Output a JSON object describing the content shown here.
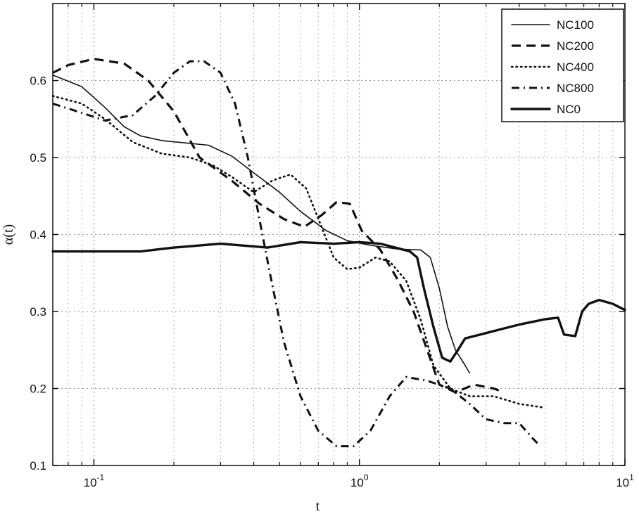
{
  "chart_data": {
    "type": "line",
    "xlabel": "t",
    "ylabel": "α(t)",
    "xscale": "log",
    "xlim": [
      0.07,
      10
    ],
    "ylim": [
      0.1,
      0.7
    ],
    "xticks": [
      {
        "value": 0.1,
        "base": "10",
        "exp": "-1"
      },
      {
        "value": 1,
        "base": "10",
        "exp": "0"
      },
      {
        "value": 10,
        "base": "10",
        "exp": "1"
      }
    ],
    "yticks": [
      0.1,
      0.2,
      0.3,
      0.4,
      0.5,
      0.6
    ],
    "ytick_labels": [
      "0.1",
      "0.2",
      "0.3",
      "0.4",
      "0.5",
      "0.6"
    ],
    "grid": true,
    "legend_position": "top-right",
    "series": [
      {
        "name": "NC100",
        "style": "thin-solid",
        "points": [
          [
            0.07,
            0.607
          ],
          [
            0.09,
            0.592
          ],
          [
            0.11,
            0.565
          ],
          [
            0.13,
            0.54
          ],
          [
            0.15,
            0.528
          ],
          [
            0.18,
            0.522
          ],
          [
            0.22,
            0.519
          ],
          [
            0.27,
            0.516
          ],
          [
            0.33,
            0.502
          ],
          [
            0.4,
            0.48
          ],
          [
            0.5,
            0.455
          ],
          [
            0.6,
            0.43
          ],
          [
            0.75,
            0.405
          ],
          [
            0.9,
            0.392
          ],
          [
            1.1,
            0.386
          ],
          [
            1.4,
            0.381
          ],
          [
            1.7,
            0.38
          ],
          [
            1.85,
            0.37
          ],
          [
            2.0,
            0.33
          ],
          [
            2.15,
            0.28
          ],
          [
            2.3,
            0.25
          ],
          [
            2.5,
            0.23
          ],
          [
            2.6,
            0.22
          ]
        ]
      },
      {
        "name": "NC200",
        "style": "dashed",
        "points": [
          [
            0.07,
            0.61
          ],
          [
            0.08,
            0.62
          ],
          [
            0.1,
            0.628
          ],
          [
            0.13,
            0.622
          ],
          [
            0.16,
            0.6
          ],
          [
            0.2,
            0.56
          ],
          [
            0.25,
            0.5
          ],
          [
            0.33,
            0.47
          ],
          [
            0.42,
            0.44
          ],
          [
            0.52,
            0.42
          ],
          [
            0.62,
            0.41
          ],
          [
            0.72,
            0.425
          ],
          [
            0.82,
            0.442
          ],
          [
            0.92,
            0.44
          ],
          [
            1.02,
            0.405
          ],
          [
            1.2,
            0.38
          ],
          [
            1.4,
            0.34
          ],
          [
            1.6,
            0.3
          ],
          [
            1.8,
            0.25
          ],
          [
            2.0,
            0.205
          ],
          [
            2.3,
            0.195
          ],
          [
            2.7,
            0.205
          ],
          [
            3.2,
            0.2
          ],
          [
            3.5,
            0.195
          ]
        ]
      },
      {
        "name": "NC400",
        "style": "dotted",
        "points": [
          [
            0.07,
            0.58
          ],
          [
            0.09,
            0.57
          ],
          [
            0.11,
            0.55
          ],
          [
            0.14,
            0.52
          ],
          [
            0.18,
            0.505
          ],
          [
            0.23,
            0.5
          ],
          [
            0.28,
            0.49
          ],
          [
            0.33,
            0.475
          ],
          [
            0.4,
            0.455
          ],
          [
            0.47,
            0.47
          ],
          [
            0.55,
            0.478
          ],
          [
            0.63,
            0.46
          ],
          [
            0.72,
            0.41
          ],
          [
            0.8,
            0.37
          ],
          [
            0.9,
            0.355
          ],
          [
            1.0,
            0.357
          ],
          [
            1.15,
            0.37
          ],
          [
            1.3,
            0.365
          ],
          [
            1.5,
            0.34
          ],
          [
            1.7,
            0.29
          ],
          [
            1.9,
            0.23
          ],
          [
            2.2,
            0.2
          ],
          [
            2.6,
            0.19
          ],
          [
            3.2,
            0.19
          ],
          [
            4.0,
            0.18
          ],
          [
            5.0,
            0.175
          ]
        ]
      },
      {
        "name": "NC800",
        "style": "dash-dot",
        "points": [
          [
            0.07,
            0.57
          ],
          [
            0.09,
            0.558
          ],
          [
            0.11,
            0.548
          ],
          [
            0.14,
            0.555
          ],
          [
            0.17,
            0.58
          ],
          [
            0.2,
            0.61
          ],
          [
            0.23,
            0.625
          ],
          [
            0.26,
            0.625
          ],
          [
            0.3,
            0.61
          ],
          [
            0.34,
            0.57
          ],
          [
            0.38,
            0.5
          ],
          [
            0.42,
            0.42
          ],
          [
            0.46,
            0.35
          ],
          [
            0.52,
            0.26
          ],
          [
            0.6,
            0.19
          ],
          [
            0.7,
            0.145
          ],
          [
            0.82,
            0.125
          ],
          [
            0.95,
            0.125
          ],
          [
            1.1,
            0.145
          ],
          [
            1.3,
            0.19
          ],
          [
            1.5,
            0.215
          ],
          [
            1.8,
            0.21
          ],
          [
            2.2,
            0.2
          ],
          [
            2.6,
            0.18
          ],
          [
            3.0,
            0.16
          ],
          [
            3.5,
            0.155
          ],
          [
            4.0,
            0.155
          ],
          [
            4.5,
            0.135
          ],
          [
            4.8,
            0.125
          ]
        ]
      },
      {
        "name": "NC0",
        "style": "thick-solid",
        "points": [
          [
            0.07,
            0.378
          ],
          [
            0.1,
            0.378
          ],
          [
            0.15,
            0.378
          ],
          [
            0.2,
            0.383
          ],
          [
            0.3,
            0.388
          ],
          [
            0.45,
            0.383
          ],
          [
            0.6,
            0.39
          ],
          [
            0.8,
            0.388
          ],
          [
            1.0,
            0.39
          ],
          [
            1.2,
            0.388
          ],
          [
            1.4,
            0.382
          ],
          [
            1.55,
            0.378
          ],
          [
            1.65,
            0.37
          ],
          [
            1.75,
            0.33
          ],
          [
            1.9,
            0.28
          ],
          [
            2.05,
            0.24
          ],
          [
            2.2,
            0.235
          ],
          [
            2.35,
            0.25
          ],
          [
            2.5,
            0.265
          ],
          [
            3.0,
            0.272
          ],
          [
            3.5,
            0.278
          ],
          [
            4.0,
            0.283
          ],
          [
            5.0,
            0.29
          ],
          [
            5.6,
            0.292
          ],
          [
            5.9,
            0.27
          ],
          [
            6.5,
            0.268
          ],
          [
            6.9,
            0.3
          ],
          [
            7.3,
            0.31
          ],
          [
            8.0,
            0.315
          ],
          [
            9.0,
            0.31
          ],
          [
            10.0,
            0.302
          ]
        ]
      }
    ]
  }
}
